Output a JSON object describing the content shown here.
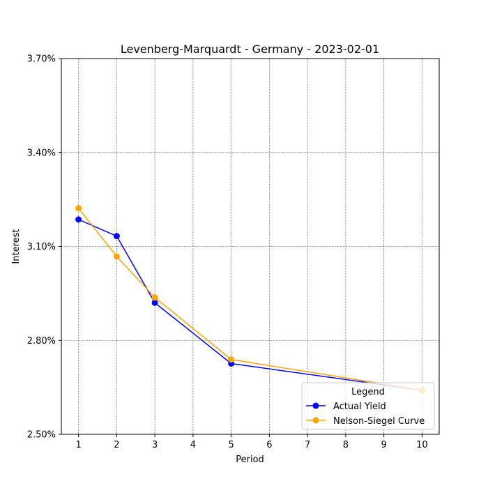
{
  "chart_data": {
    "type": "line",
    "title": "Levenberg-Marquardt - Germany - 2023-02-01",
    "xlabel": "Period",
    "ylabel": "Interest",
    "xlim": [
      0.55,
      10.45
    ],
    "ylim": [
      2.5,
      3.7
    ],
    "x_ticks": [
      1,
      2,
      3,
      4,
      5,
      6,
      7,
      8,
      9,
      10
    ],
    "y_ticks": [
      2.5,
      2.8,
      3.1,
      3.4,
      3.7
    ],
    "y_tick_labels": [
      "2.50%",
      "2.80%",
      "3.10%",
      "3.40%",
      "3.70%"
    ],
    "grid": true,
    "legend": {
      "title": "Legend",
      "position": "lower-right"
    },
    "series": [
      {
        "name": "Actual Yield",
        "color": "#0000ff",
        "marker": "circle",
        "x": [
          1,
          2,
          3,
          5,
          10
        ],
        "y": [
          3.186,
          3.133,
          2.92,
          2.726,
          2.641
        ]
      },
      {
        "name": "Nelson-Siegel Curve",
        "color": "#ffa500",
        "marker": "circle",
        "x": [
          1,
          2,
          3,
          5,
          10
        ],
        "y": [
          3.222,
          3.068,
          2.937,
          2.739,
          2.641
        ]
      }
    ]
  }
}
